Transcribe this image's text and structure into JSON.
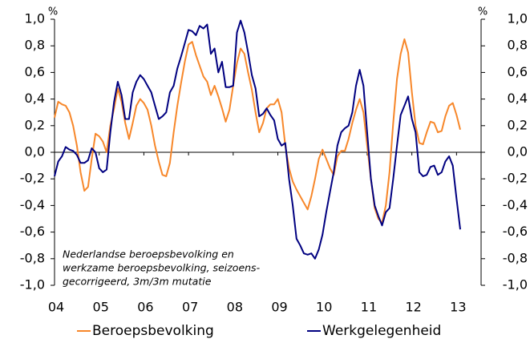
{
  "chart_data": {
    "type": "line",
    "ylabel": "%",
    "y2label": "%",
    "annotation": [
      "Nederlandse beroepsbevolking en",
      "werkzame beroepsbevolking, seizoens-",
      "gecorrigeerd, 3m/3m mutatie"
    ],
    "x": [
      4,
      4.083,
      4.167,
      4.25,
      4.333,
      4.417,
      4.5,
      4.583,
      4.667,
      4.75,
      4.833,
      4.917,
      5,
      5.083,
      5.167,
      5.25,
      5.333,
      5.417,
      5.5,
      5.583,
      5.667,
      5.75,
      5.833,
      5.917,
      6,
      6.083,
      6.167,
      6.25,
      6.333,
      6.417,
      6.5,
      6.583,
      6.667,
      6.75,
      6.833,
      6.917,
      7,
      7.083,
      7.167,
      7.25,
      7.333,
      7.417,
      7.5,
      7.583,
      7.667,
      7.75,
      7.833,
      7.917,
      8,
      8.083,
      8.167,
      8.25,
      8.333,
      8.417,
      8.5,
      8.583,
      8.667,
      8.75,
      8.833,
      8.917,
      9,
      9.083,
      9.167,
      9.25,
      9.333,
      9.417,
      9.5,
      9.583,
      9.667,
      9.75,
      9.833,
      9.917,
      10,
      10.083,
      10.167,
      10.25,
      10.333,
      10.417,
      10.5,
      10.583,
      10.667,
      10.75,
      10.833,
      10.917,
      11,
      11.083,
      11.167,
      11.25,
      11.333,
      11.417,
      11.5,
      11.583,
      11.667,
      11.75,
      11.833,
      11.917,
      12,
      12.083,
      12.167,
      12.25,
      12.333,
      12.417,
      12.5,
      12.583,
      12.667,
      12.75,
      12.833,
      12.917,
      13,
      13.083
    ],
    "series": [
      {
        "name": "Beroepsbevolking",
        "color": "#f7872a",
        "values": [
          0.26,
          0.38,
          0.36,
          0.35,
          0.3,
          0.2,
          0.05,
          -0.15,
          -0.29,
          -0.26,
          -0.05,
          0.14,
          0.12,
          0.08,
          0.0,
          0.2,
          0.33,
          0.48,
          0.38,
          0.22,
          0.1,
          0.22,
          0.35,
          0.4,
          0.37,
          0.32,
          0.2,
          0.05,
          -0.07,
          -0.17,
          -0.18,
          -0.08,
          0.15,
          0.35,
          0.52,
          0.68,
          0.81,
          0.83,
          0.73,
          0.65,
          0.57,
          0.53,
          0.43,
          0.5,
          0.42,
          0.33,
          0.23,
          0.32,
          0.5,
          0.67,
          0.78,
          0.74,
          0.6,
          0.47,
          0.3,
          0.15,
          0.22,
          0.33,
          0.36,
          0.36,
          0.4,
          0.3,
          0.05,
          -0.12,
          -0.22,
          -0.28,
          -0.33,
          -0.38,
          -0.43,
          -0.33,
          -0.2,
          -0.05,
          0.02,
          -0.05,
          -0.12,
          -0.17,
          -0.03,
          0.01,
          0.01,
          0.1,
          0.22,
          0.32,
          0.4,
          0.3,
          0.05,
          -0.2,
          -0.42,
          -0.5,
          -0.53,
          -0.4,
          -0.15,
          0.22,
          0.55,
          0.74,
          0.85,
          0.75,
          0.45,
          0.2,
          0.07,
          0.06,
          0.15,
          0.23,
          0.22,
          0.15,
          0.16,
          0.27,
          0.35,
          0.37,
          0.28,
          0.17
        ]
      },
      {
        "name": "Werkgelegenheid",
        "color": "#000080",
        "values": [
          -0.18,
          -0.07,
          -0.03,
          0.04,
          0.02,
          0.01,
          -0.02,
          -0.08,
          -0.08,
          -0.06,
          0.03,
          0.0,
          -0.12,
          -0.15,
          -0.13,
          0.15,
          0.38,
          0.53,
          0.43,
          0.25,
          0.25,
          0.45,
          0.53,
          0.58,
          0.55,
          0.5,
          0.45,
          0.35,
          0.25,
          0.27,
          0.3,
          0.45,
          0.5,
          0.63,
          0.72,
          0.82,
          0.92,
          0.91,
          0.88,
          0.95,
          0.93,
          0.96,
          0.74,
          0.78,
          0.6,
          0.68,
          0.49,
          0.49,
          0.5,
          0.9,
          0.99,
          0.9,
          0.75,
          0.58,
          0.48,
          0.27,
          0.29,
          0.33,
          0.28,
          0.24,
          0.1,
          0.05,
          0.07,
          -0.2,
          -0.4,
          -0.65,
          -0.7,
          -0.76,
          -0.77,
          -0.76,
          -0.8,
          -0.73,
          -0.62,
          -0.45,
          -0.3,
          -0.15,
          0.05,
          0.15,
          0.18,
          0.2,
          0.3,
          0.5,
          0.62,
          0.5,
          0.15,
          -0.2,
          -0.4,
          -0.48,
          -0.55,
          -0.45,
          -0.42,
          -0.2,
          0.05,
          0.28,
          0.35,
          0.42,
          0.25,
          0.15,
          -0.15,
          -0.18,
          -0.17,
          -0.11,
          -0.1,
          -0.17,
          -0.15,
          -0.07,
          -0.03,
          -0.1,
          -0.35,
          -0.58
        ]
      }
    ],
    "xlim": [
      4,
      13.55
    ],
    "xticks": [
      {
        "value": 4,
        "label": "04"
      },
      {
        "value": 5,
        "label": "05"
      },
      {
        "value": 6,
        "label": "06"
      },
      {
        "value": 7,
        "label": "07"
      },
      {
        "value": 8,
        "label": "08"
      },
      {
        "value": 9,
        "label": "09"
      },
      10,
      11,
      12,
      13
    ],
    "ylim": [
      -1,
      1
    ],
    "yticks": [
      {
        "value": -1,
        "label": "-1,0"
      },
      {
        "value": -0.8,
        "label": "-0,8"
      },
      {
        "value": -0.6,
        "label": "-0,6"
      },
      {
        "value": -0.4,
        "label": "-0,4"
      },
      {
        "value": -0.2,
        "label": "-0,2"
      },
      {
        "value": 0,
        "label": "0,0"
      },
      {
        "value": 0.2,
        "label": "0,2"
      },
      {
        "value": 0.4,
        "label": "0,4"
      },
      {
        "value": 0.6,
        "label": "0,6"
      },
      {
        "value": 0.8,
        "label": "0,8"
      },
      {
        "value": 1,
        "label": "1,0"
      }
    ],
    "y2lim": [
      -1,
      1
    ],
    "y2ticks": [
      {
        "value": -1,
        "label": "-1,0"
      },
      {
        "value": -0.8,
        "label": "-0,8"
      },
      {
        "value": -0.6,
        "label": "-0,6"
      },
      {
        "value": -0.4,
        "label": "-0,4"
      },
      {
        "value": -0.2,
        "label": "-0,2"
      },
      {
        "value": 0,
        "label": "0,0"
      },
      {
        "value": 0.2,
        "label": "0,2"
      },
      {
        "value": 0.4,
        "label": "0,4"
      },
      {
        "value": 0.6,
        "label": "0,6"
      },
      {
        "value": 0.8,
        "label": "0,8"
      },
      {
        "value": 1,
        "label": "1,0"
      }
    ],
    "grid": false,
    "legend": "bottom"
  }
}
